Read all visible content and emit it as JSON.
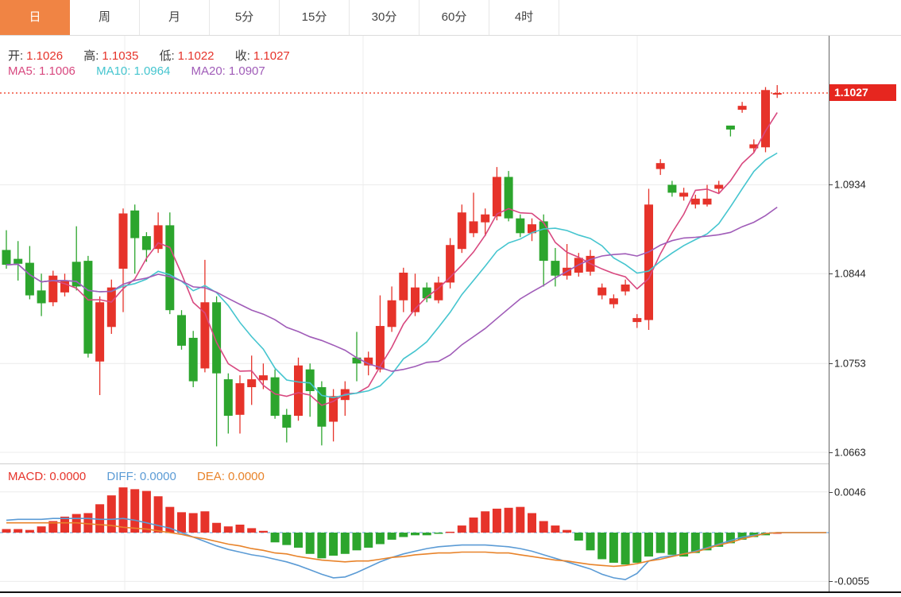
{
  "tabs": {
    "items": [
      {
        "label": "日",
        "active": true
      },
      {
        "label": "周",
        "active": false
      },
      {
        "label": "月",
        "active": false
      },
      {
        "label": "5分",
        "active": false
      },
      {
        "label": "15分",
        "active": false
      },
      {
        "label": "30分",
        "active": false
      },
      {
        "label": "60分",
        "active": false
      },
      {
        "label": "4时",
        "active": false
      }
    ]
  },
  "quote_bar": {
    "open_label": "开:",
    "open": "1.1026",
    "high_label": "高:",
    "high": "1.1035",
    "low_label": "低:",
    "low": "1.1022",
    "close_label": "收:",
    "close": "1.1027"
  },
  "ma_bar": {
    "ma5_label": "MA5:",
    "ma5": "1.1006",
    "ma10_label": "MA10:",
    "ma10": "1.0964",
    "ma20_label": "MA20:",
    "ma20": "1.0907"
  },
  "macd_bar": {
    "macd_label": "MACD:",
    "macd": "0.0000",
    "diff_label": "DIFF:",
    "diff": "0.0000",
    "dea_label": "DEA:",
    "dea": "0.0000"
  },
  "price_axis": {
    "current_badge": "1.1027",
    "ticks": [
      {
        "label": "1.0934",
        "price": 1.0934
      },
      {
        "label": "1.0844",
        "price": 1.0844
      },
      {
        "label": "1.0753",
        "price": 1.0753
      },
      {
        "label": "1.0663",
        "price": 1.0663
      }
    ]
  },
  "macd_axis": {
    "ticks": [
      {
        "label": "0.0046",
        "value": 0.0046
      },
      {
        "label": "-0.0055",
        "value": -0.0055
      }
    ]
  },
  "colors": {
    "up": "#e6332a",
    "down": "#2ca52d",
    "ma5": "#d8487f",
    "ma10": "#45c5cf",
    "ma20": "#a05cb8",
    "diff": "#5b9bd5",
    "dea": "#e8832a",
    "tab_accent": "#f08444",
    "badge": "#e6261f",
    "price_line": "#f0503c",
    "grid": "#ececec",
    "label_dark": "#3a3a3a",
    "value_red": "#e6332a"
  },
  "chart_data": [
    {
      "type": "candlestick",
      "title": "",
      "up_means": "close>open (red)",
      "down_means": "close<open (green)",
      "ma_periods": [
        5,
        10,
        20
      ],
      "current_price": 1.1027,
      "price_marker_line": 1.1027,
      "y_ticks": [
        1.1027,
        1.0934,
        1.0844,
        1.0753,
        1.0663
      ],
      "ylim": [
        1.0652,
        1.1085
      ],
      "grid": true,
      "ohlc": [
        [
          1.0868,
          1.0888,
          1.0849,
          1.0853
        ],
        [
          1.0859,
          1.0877,
          1.0837,
          1.0854
        ],
        [
          1.0855,
          1.0872,
          1.0818,
          1.0822
        ],
        [
          1.0827,
          1.0844,
          1.0801,
          1.0814
        ],
        [
          1.0815,
          1.0847,
          1.0811,
          1.0842
        ],
        [
          1.0825,
          1.0844,
          1.0821,
          1.0837
        ],
        [
          1.0856,
          1.0892,
          1.0827,
          1.0831
        ],
        [
          1.0857,
          1.0862,
          1.0759,
          1.0763
        ],
        [
          1.0755,
          1.0821,
          1.0721,
          1.0815
        ],
        [
          1.079,
          1.0838,
          1.0783,
          1.083
        ],
        [
          1.0849,
          1.091,
          1.0805,
          1.0905
        ],
        [
          1.0908,
          1.0914,
          1.0844,
          1.088
        ],
        [
          1.0882,
          1.0886,
          1.0856,
          1.0868
        ],
        [
          1.0869,
          1.0906,
          1.0865,
          1.0893
        ],
        [
          1.0893,
          1.0906,
          1.0803,
          1.0807
        ],
        [
          1.0802,
          1.0807,
          1.0767,
          1.0771
        ],
        [
          1.0779,
          1.0786,
          1.0729,
          1.0735
        ],
        [
          1.0748,
          1.0858,
          1.0744,
          1.0815
        ],
        [
          1.0815,
          1.0821,
          1.0669,
          1.0743
        ],
        [
          1.0737,
          1.0743,
          1.0682,
          1.07
        ],
        [
          1.0701,
          1.0741,
          1.0682,
          1.0733
        ],
        [
          1.0729,
          1.0761,
          1.0711,
          1.0737
        ],
        [
          1.0736,
          1.0753,
          1.0727,
          1.0741
        ],
        [
          1.0739,
          1.0747,
          1.0697,
          1.07
        ],
        [
          1.0701,
          1.0707,
          1.0673,
          1.0688
        ],
        [
          1.07,
          1.0759,
          1.0695,
          1.0751
        ],
        [
          1.0747,
          1.0753,
          1.0699,
          1.0725
        ],
        [
          1.0729,
          1.0735,
          1.067,
          1.0689
        ],
        [
          1.0694,
          1.0727,
          1.0674,
          1.072
        ],
        [
          1.0716,
          1.0735,
          1.07,
          1.0727
        ],
        [
          1.0759,
          1.0785,
          1.0735,
          1.0753
        ],
        [
          1.0751,
          1.0765,
          1.0741,
          1.0759
        ],
        [
          1.0747,
          1.0822,
          1.0744,
          1.0791
        ],
        [
          1.079,
          1.0831,
          1.0785,
          1.0817
        ],
        [
          1.0817,
          1.085,
          1.0805,
          1.0845
        ],
        [
          1.0805,
          1.0844,
          1.0801,
          1.083
        ],
        [
          1.083,
          1.0835,
          1.0815,
          1.0819
        ],
        [
          1.0817,
          1.0841,
          1.0814,
          1.0835
        ],
        [
          1.0835,
          1.088,
          1.0829,
          1.0873
        ],
        [
          1.0869,
          1.0914,
          1.0865,
          1.0906
        ],
        [
          1.0885,
          1.0926,
          1.0881,
          1.0897
        ],
        [
          1.0896,
          1.091,
          1.0882,
          1.0904
        ],
        [
          1.0902,
          1.0952,
          1.0898,
          1.0942
        ],
        [
          1.0942,
          1.0948,
          1.0897,
          1.09
        ],
        [
          1.09,
          1.0904,
          1.0881,
          1.0885
        ],
        [
          1.0885,
          1.09,
          1.0877,
          1.0894
        ],
        [
          1.0897,
          1.0904,
          1.0831,
          1.0857
        ],
        [
          1.0857,
          1.087,
          1.0831,
          1.0842
        ],
        [
          1.0842,
          1.0874,
          1.0838,
          1.085
        ],
        [
          1.0845,
          1.0865,
          1.0841,
          1.086
        ],
        [
          1.0846,
          1.0868,
          1.0842,
          1.0862
        ],
        [
          1.0822,
          1.0834,
          1.0818,
          1.083
        ],
        [
          1.0813,
          1.0823,
          1.0809,
          1.0819
        ],
        [
          1.0826,
          1.0838,
          1.0822,
          1.0833
        ],
        [
          1.0795,
          1.0803,
          1.0789,
          1.0799
        ],
        [
          1.0797,
          1.093,
          1.0787,
          1.0914
        ],
        [
          1.095,
          1.096,
          1.0944,
          1.0956
        ],
        [
          1.0934,
          1.0938,
          1.0922,
          1.0926
        ],
        [
          1.0922,
          1.0931,
          1.0918,
          1.0926
        ],
        [
          1.0914,
          1.0924,
          1.091,
          1.092
        ],
        [
          1.0914,
          1.0934,
          1.0912,
          1.092
        ],
        [
          1.093,
          1.0938,
          1.0926,
          1.0934
        ],
        [
          1.0994,
          1.0994,
          1.0983,
          1.099
        ],
        [
          1.101,
          1.1018,
          1.1007,
          1.1014
        ],
        [
          1.0971,
          1.098,
          1.0967,
          1.0975
        ],
        [
          1.0972,
          1.1033,
          1.0967,
          1.103
        ],
        [
          1.1026,
          1.1035,
          1.1022,
          1.1027
        ]
      ]
    },
    {
      "type": "macd",
      "y_ticks": [
        0.0046,
        -0.0055
      ],
      "zero_line": 0,
      "hist": [
        0.0004,
        0.0004,
        0.0003,
        0.0007,
        0.0013,
        0.0018,
        0.0021,
        0.0022,
        0.0032,
        0.0042,
        0.0051,
        0.0049,
        0.0047,
        0.0041,
        0.0029,
        0.0023,
        0.0022,
        0.0024,
        0.0011,
        0.0007,
        0.0009,
        0.0005,
        0.0002,
        -0.0011,
        -0.0014,
        -0.0017,
        -0.0024,
        -0.0029,
        -0.0026,
        -0.0024,
        -0.002,
        -0.0017,
        -0.0013,
        -0.0008,
        -0.0005,
        -0.0003,
        -0.0003,
        -0.0001,
        0.0001,
        0.0008,
        0.0017,
        0.0024,
        0.0027,
        0.0028,
        0.0029,
        0.0022,
        0.0013,
        0.0008,
        0.0003,
        -0.0009,
        -0.002,
        -0.003,
        -0.0034,
        -0.0036,
        -0.0034,
        -0.0027,
        -0.0023,
        -0.0025,
        -0.0027,
        -0.0023,
        -0.002,
        -0.0016,
        -0.0012,
        -0.0008,
        -0.0005,
        -0.0003,
        0.0
      ],
      "diff": [
        0.0014,
        0.0015,
        0.0015,
        0.0015,
        0.0016,
        0.0016,
        0.0016,
        0.0016,
        0.0015,
        0.0015,
        0.0016,
        0.0014,
        0.0011,
        0.0008,
        0.0005,
        0.0,
        -0.0005,
        -0.001,
        -0.0015,
        -0.0019,
        -0.0022,
        -0.0025,
        -0.0027,
        -0.003,
        -0.0033,
        -0.0037,
        -0.0042,
        -0.0047,
        -0.0051,
        -0.005,
        -0.0045,
        -0.0039,
        -0.0033,
        -0.0028,
        -0.0024,
        -0.0021,
        -0.0018,
        -0.0016,
        -0.0015,
        -0.0014,
        -0.0014,
        -0.0014,
        -0.0015,
        -0.0016,
        -0.0018,
        -0.0021,
        -0.0025,
        -0.0029,
        -0.0033,
        -0.0037,
        -0.0041,
        -0.0047,
        -0.0051,
        -0.0053,
        -0.0046,
        -0.0032,
        -0.0028,
        -0.0026,
        -0.0024,
        -0.0021,
        -0.0017,
        -0.0013,
        -0.0009,
        -0.0005,
        -0.0003,
        -0.0001,
        0.0
      ],
      "dea": [
        0.0011,
        0.0011,
        0.0011,
        0.0011,
        0.0011,
        0.0011,
        0.0011,
        0.001,
        0.0009,
        0.0008,
        0.0006,
        0.0005,
        0.0004,
        0.0002,
        0.0,
        -0.0002,
        -0.0005,
        -0.0007,
        -0.001,
        -0.0013,
        -0.0015,
        -0.0018,
        -0.002,
        -0.0023,
        -0.0024,
        -0.0027,
        -0.0029,
        -0.0031,
        -0.0032,
        -0.0033,
        -0.0032,
        -0.0032,
        -0.003,
        -0.0028,
        -0.0027,
        -0.0025,
        -0.0024,
        -0.0023,
        -0.0023,
        -0.0022,
        -0.0022,
        -0.0022,
        -0.0023,
        -0.0023,
        -0.0025,
        -0.0027,
        -0.0029,
        -0.0031,
        -0.0032,
        -0.0034,
        -0.0036,
        -0.0037,
        -0.0038,
        -0.0037,
        -0.0035,
        -0.0032,
        -0.003,
        -0.0027,
        -0.0024,
        -0.0022,
        -0.0018,
        -0.0014,
        -0.0011,
        -0.0007,
        -0.0004,
        -0.0001,
        0.0
      ]
    }
  ]
}
